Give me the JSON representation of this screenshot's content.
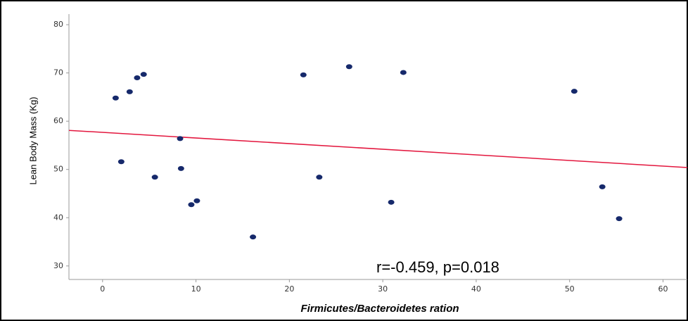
{
  "chart_data": {
    "type": "scatter",
    "x_label": "Firmicutes/Bacteroidetes ration",
    "y_label": "Lean Body Mass (Kg)",
    "annotation": "r=-0.459, p=0.018",
    "x": [
      1.4,
      2.0,
      2.9,
      3.7,
      4.4,
      5.6,
      8.3,
      8.4,
      9.5,
      10.1,
      16.1,
      21.5,
      23.2,
      26.4,
      30.9,
      32.2,
      50.5,
      53.5,
      55.3
    ],
    "y": [
      64.8,
      51.6,
      66.1,
      69.0,
      69.7,
      48.4,
      56.4,
      50.2,
      42.7,
      43.5,
      36.0,
      69.6,
      48.4,
      71.3,
      43.2,
      70.1,
      66.2,
      46.4,
      39.8
    ],
    "color": "#16296b",
    "fit_line": {
      "x": [
        -3.6,
        62.6
      ],
      "y": [
        58.1,
        50.4
      ],
      "color": "#e3173e"
    },
    "xlim": [
      -3.6,
      62.6
    ],
    "ylim": [
      27.2,
      82.2
    ],
    "xticks": [
      0,
      10,
      20,
      30,
      40,
      50,
      60
    ],
    "yticks": [
      30,
      40,
      50,
      60,
      70,
      80
    ]
  }
}
